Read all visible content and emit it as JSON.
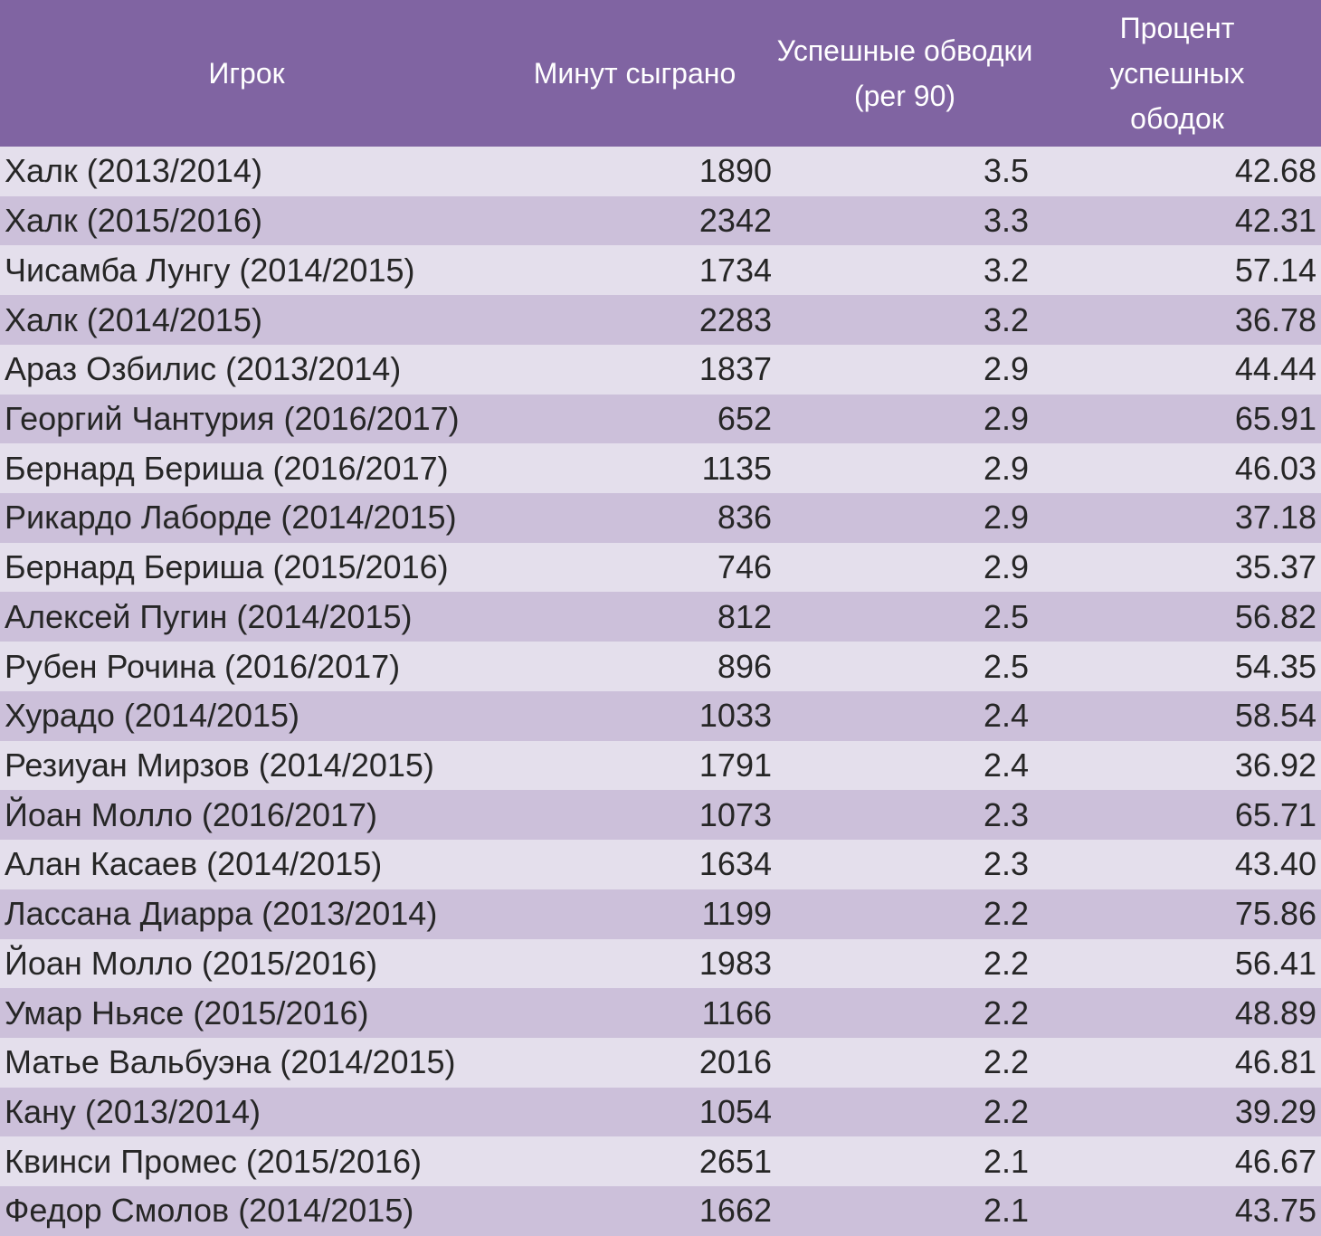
{
  "table": {
    "header": [
      "Игрок",
      "Минут сыграно",
      "Успешные обводки (per 90)",
      "Процент успешных ободок"
    ],
    "rows": [
      [
        "Халк (2013/2014)",
        "1890",
        "3.5",
        "42.68"
      ],
      [
        "Халк (2015/2016)",
        "2342",
        "3.3",
        "42.31"
      ],
      [
        "Чисамба Лунгу (2014/2015)",
        "1734",
        "3.2",
        "57.14"
      ],
      [
        "Халк (2014/2015)",
        "2283",
        "3.2",
        "36.78"
      ],
      [
        "Араз Озбилис (2013/2014)",
        "1837",
        "2.9",
        "44.44"
      ],
      [
        "Георгий Чантурия (2016/2017)",
        "652",
        "2.9",
        "65.91"
      ],
      [
        "Бернард Бериша (2016/2017)",
        "1135",
        "2.9",
        "46.03"
      ],
      [
        "Рикардо Лаборде (2014/2015)",
        "836",
        "2.9",
        "37.18"
      ],
      [
        "Бернард Бериша (2015/2016)",
        "746",
        "2.9",
        "35.37"
      ],
      [
        "Алексей Пугин (2014/2015)",
        "812",
        "2.5",
        "56.82"
      ],
      [
        "Рубен Рочина (2016/2017)",
        "896",
        "2.5",
        "54.35"
      ],
      [
        "Хурадо (2014/2015)",
        "1033",
        "2.4",
        "58.54"
      ],
      [
        "Резиуан Мирзов (2014/2015)",
        "1791",
        "2.4",
        "36.92"
      ],
      [
        "Йоан Молло (2016/2017)",
        "1073",
        "2.3",
        "65.71"
      ],
      [
        "Алан Касаев (2014/2015)",
        "1634",
        "2.3",
        "43.40"
      ],
      [
        "Лассана Диарра (2013/2014)",
        "1199",
        "2.2",
        "75.86"
      ],
      [
        "Йоан Молло (2015/2016)",
        "1983",
        "2.2",
        "56.41"
      ],
      [
        "Умар Ньясе (2015/2016)",
        "1166",
        "2.2",
        "48.89"
      ],
      [
        "Матье Вальбуэна (2014/2015)",
        "2016",
        "2.2",
        "46.81"
      ],
      [
        "Кану (2013/2014)",
        "1054",
        "2.2",
        "39.29"
      ],
      [
        "Квинси Промес (2015/2016)",
        "2651",
        "2.1",
        "46.67"
      ],
      [
        "Федор Смолов (2014/2015)",
        "1662",
        "2.1",
        "43.75"
      ]
    ]
  }
}
